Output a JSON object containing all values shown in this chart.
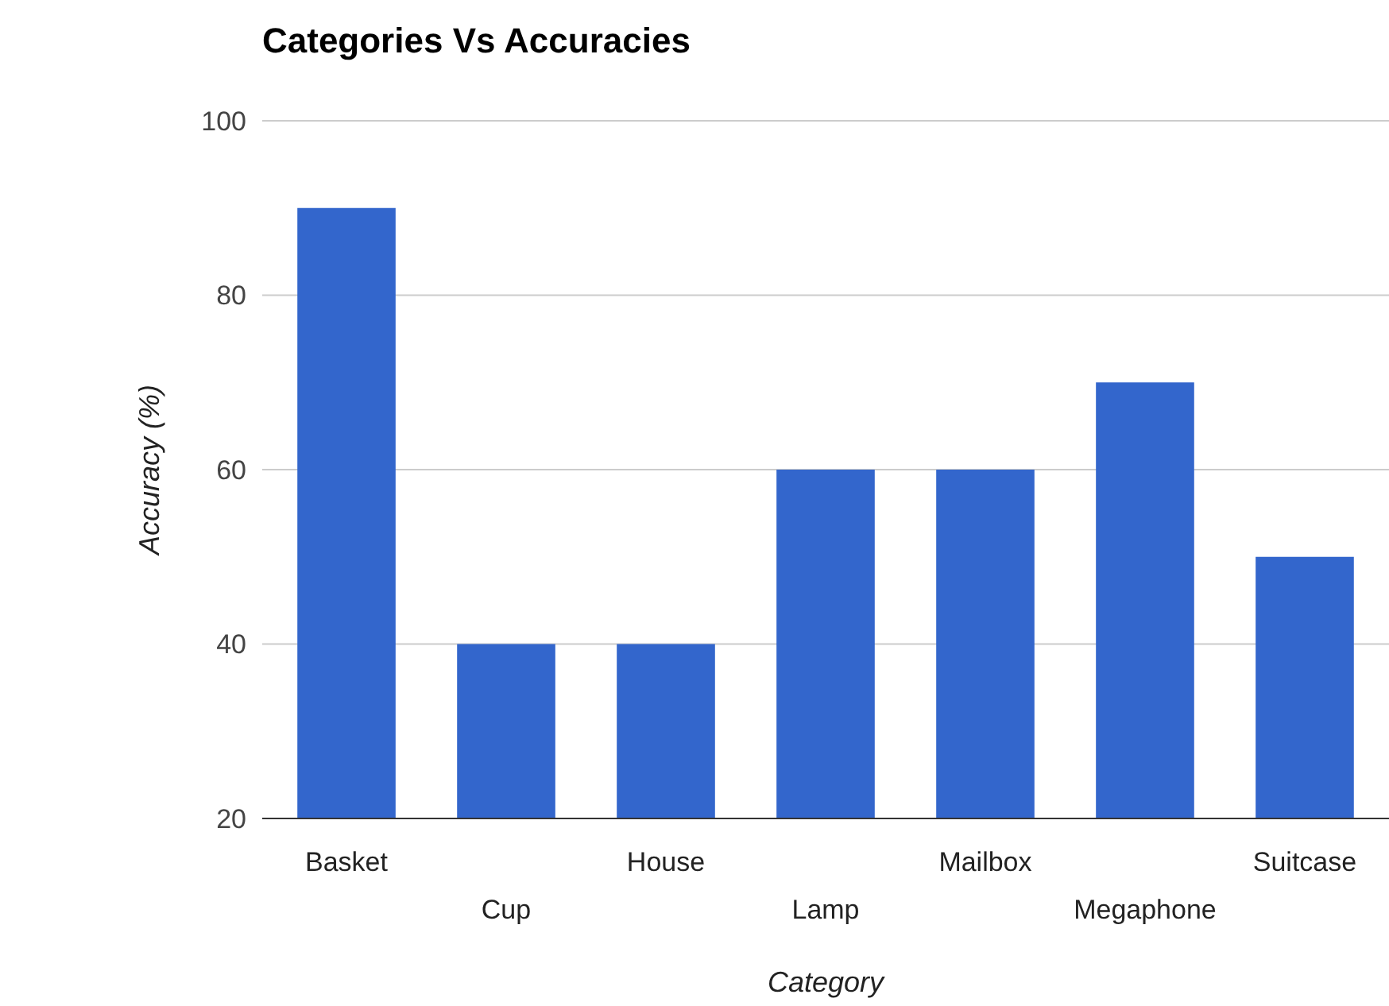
{
  "chart_data": {
    "type": "bar",
    "title": "Categories Vs Accuracies",
    "xlabel": "Category",
    "ylabel": "Accuracy (%)",
    "categories": [
      "Basket",
      "Cup",
      "House",
      "Lamp",
      "Mailbox",
      "Megaphone",
      "Suitcase"
    ],
    "values": [
      90,
      40,
      40,
      60,
      60,
      70,
      50
    ],
    "color": "#3366cc",
    "ylim": [
      20,
      100
    ],
    "yticks": [
      20,
      40,
      60,
      80,
      100
    ],
    "grid": true
  }
}
